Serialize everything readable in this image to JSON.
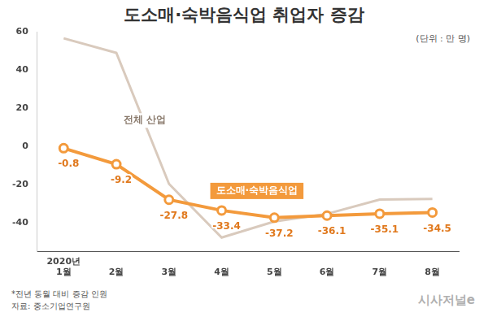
{
  "chart_data": {
    "type": "line",
    "title": "도소매·숙박음식업 취업자 증감",
    "unit_label": "(단위 : 만 명)",
    "categories": [
      "2020년 1월",
      "2월",
      "3월",
      "4월",
      "5월",
      "6월",
      "7월",
      "8월"
    ],
    "series": [
      {
        "name": "전체 산업",
        "color": "#d9cabd",
        "marker": "none",
        "values": [
          56.8,
          49.2,
          -19.5,
          -47.6,
          -39.2,
          -35.2,
          -27.7,
          -27.4
        ]
      },
      {
        "name": "도소매·숙박음식업",
        "color": "#f39a3c",
        "marker": "circle",
        "data_labels": true,
        "values": [
          -0.8,
          -9.2,
          -27.8,
          -33.4,
          -37.2,
          -36.1,
          -35.1,
          -34.5
        ]
      }
    ],
    "ylim": [
      -55,
      60
    ],
    "yticks": [
      -40,
      -20,
      0,
      20,
      40,
      60
    ],
    "grid": false,
    "notes": [
      "*전년 동월 대비 증감 인원",
      "자료: 중소기업연구원"
    ],
    "brand": "시사저널e"
  }
}
